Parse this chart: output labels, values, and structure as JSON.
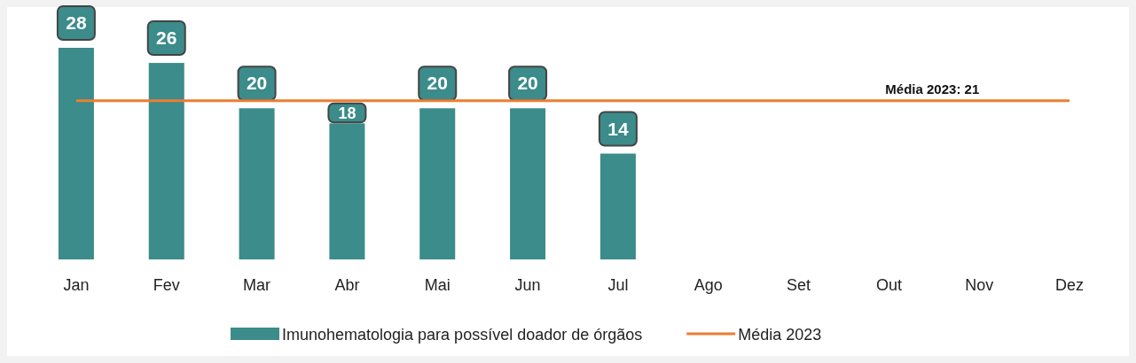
{
  "chart_data": {
    "type": "bar",
    "categories": [
      "Jan",
      "Fev",
      "Mar",
      "Abr",
      "Mai",
      "Jun",
      "Jul",
      "Ago",
      "Set",
      "Out",
      "Nov",
      "Dez"
    ],
    "series": [
      {
        "name": "Imunohematologia para possível doador de órgãos",
        "color": "#3b8c8a",
        "values": [
          28,
          26,
          20,
          18,
          20,
          20,
          14,
          null,
          null,
          null,
          null,
          null
        ],
        "value_labels": [
          "28",
          "26",
          "20",
          "18",
          "20",
          "20",
          "14",
          null,
          null,
          null,
          null,
          null
        ]
      },
      {
        "name": "Média 2023",
        "type": "line",
        "color": "#ed7d31",
        "values": [
          21,
          21,
          21,
          21,
          21,
          21,
          21,
          21,
          21,
          21,
          21,
          21
        ]
      }
    ],
    "annotations": [
      {
        "text": "Média 2023: 21",
        "x": "Nov",
        "y": 21
      }
    ],
    "legend": "bottom"
  }
}
